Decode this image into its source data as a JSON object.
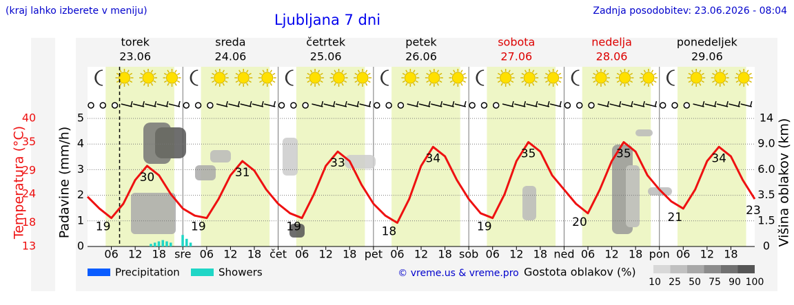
{
  "note": "(kraj lahko izberete v meniju)",
  "updated": "Zadnja posodobitev: 23.06.2026 - 08:04",
  "chart_data": {
    "type": "line",
    "title": "Ljubljana 7 dni",
    "days": [
      {
        "name": "torek",
        "date": "23.06",
        "color": "#000000"
      },
      {
        "name": "sreda",
        "date": "24.06",
        "color": "#000000"
      },
      {
        "name": "četrtek",
        "date": "25.06",
        "color": "#000000"
      },
      {
        "name": "petek",
        "date": "26.06",
        "color": "#000000"
      },
      {
        "name": "sobota",
        "date": "27.06",
        "color": "#dd0000"
      },
      {
        "name": "nedelja",
        "date": "28.06",
        "color": "#dd0000"
      },
      {
        "name": "ponedeljek",
        "date": "29.06",
        "color": "#000000"
      }
    ],
    "xlim": [
      0,
      168
    ],
    "xticks": [
      {
        "value": 6,
        "label": "06"
      },
      {
        "value": 12,
        "label": "12"
      },
      {
        "value": 18,
        "label": "18"
      },
      {
        "value": 24,
        "label": "sre"
      },
      {
        "value": 30,
        "label": "06"
      },
      {
        "value": 36,
        "label": "12"
      },
      {
        "value": 42,
        "label": "18"
      },
      {
        "value": 48,
        "label": "čet"
      },
      {
        "value": 54,
        "label": "06"
      },
      {
        "value": 60,
        "label": "12"
      },
      {
        "value": 66,
        "label": "18"
      },
      {
        "value": 72,
        "label": "pet"
      },
      {
        "value": 78,
        "label": "06"
      },
      {
        "value": 84,
        "label": "12"
      },
      {
        "value": 90,
        "label": "18"
      },
      {
        "value": 96,
        "label": "sob"
      },
      {
        "value": 102,
        "label": "06"
      },
      {
        "value": 108,
        "label": "12"
      },
      {
        "value": 114,
        "label": "18"
      },
      {
        "value": 120,
        "label": "ned"
      },
      {
        "value": 126,
        "label": "06"
      },
      {
        "value": 132,
        "label": "12"
      },
      {
        "value": 138,
        "label": "18"
      },
      {
        "value": 144,
        "label": "pon"
      },
      {
        "value": 150,
        "label": "06"
      },
      {
        "value": 156,
        "label": "12"
      },
      {
        "value": 162,
        "label": "18"
      }
    ],
    "now": 8.07,
    "ylabel": "Padavine (mm/h)",
    "ylim": [
      0,
      5
    ],
    "yticks": [
      0,
      1,
      2,
      3,
      4,
      5
    ],
    "grid": true,
    "y2label": "Višina oblakov (km)",
    "y2ticks": [
      0,
      1.5,
      3.5,
      {
        "value": 6,
        "label": "6.0"
      },
      {
        "value": 9,
        "label": "9.0"
      },
      14
    ],
    "temperature": {
      "label": "Temperatura (°C)",
      "color": "#ee1111",
      "lim": [
        13,
        40
      ],
      "ticks": [
        40,
        35,
        29,
        24,
        18,
        13
      ],
      "x": [
        0,
        3,
        6,
        9,
        12,
        15,
        18,
        21,
        24,
        27,
        30,
        33,
        36,
        39,
        42,
        45,
        48,
        51,
        54,
        57,
        60,
        63,
        66,
        69,
        72,
        75,
        78,
        81,
        84,
        87,
        90,
        93,
        96,
        99,
        102,
        105,
        108,
        111,
        114,
        117,
        120,
        123,
        126,
        129,
        132,
        135,
        138,
        141,
        144,
        147,
        150,
        153,
        156,
        159,
        162,
        165,
        168
      ],
      "values": [
        23.5,
        21,
        19,
        22,
        27,
        30,
        28,
        24,
        21,
        19.5,
        19,
        23,
        28,
        31,
        29,
        25,
        22,
        20,
        19,
        24,
        30,
        33,
        31,
        26,
        22,
        19.5,
        18,
        23,
        30,
        34,
        32,
        27,
        23,
        20,
        19,
        24,
        31,
        35,
        33,
        28,
        25,
        22,
        20,
        25,
        31,
        35,
        33,
        28,
        25,
        22.5,
        21,
        25,
        31,
        34,
        32,
        27,
        23
      ],
      "extremes": [
        {
          "x": 6,
          "value": 19
        },
        {
          "x": 15,
          "value": 30
        },
        {
          "x": 30,
          "value": 19
        },
        {
          "x": 39,
          "value": 31
        },
        {
          "x": 54,
          "value": 19
        },
        {
          "x": 63,
          "value": 33
        },
        {
          "x": 78,
          "value": 18
        },
        {
          "x": 87,
          "value": 34
        },
        {
          "x": 102,
          "value": 19
        },
        {
          "x": 111,
          "value": 35
        },
        {
          "x": 126,
          "value": 20
        },
        {
          "x": 135,
          "value": 35
        },
        {
          "x": 150,
          "value": 21
        },
        {
          "x": 159,
          "value": 34
        },
        {
          "x": 168,
          "value": 23
        }
      ]
    },
    "series": [
      {
        "name": "Precipitation",
        "color": "#0a5cff",
        "x": [],
        "values": []
      },
      {
        "name": "Showers",
        "color": "#1fd6c6",
        "x": [
          16,
          17,
          18,
          19,
          20,
          21,
          24,
          25,
          26
        ],
        "values": [
          0.1,
          0.15,
          0.2,
          0.25,
          0.2,
          0.15,
          0.45,
          0.3,
          0.15
        ]
      }
    ],
    "credit": "© vreme.us & vreme.pro",
    "cloud_legend": {
      "label": "Gostota oblakov (%)",
      "ticks": [
        10,
        25,
        50,
        75,
        90,
        100
      ]
    }
  }
}
